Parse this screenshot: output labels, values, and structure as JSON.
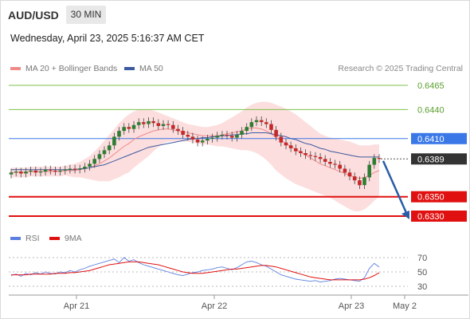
{
  "header": {
    "symbol": "AUD/USD",
    "timeframe": "30 MIN"
  },
  "timestamp": "Wednesday, April 23, 2025 5:16:37 AM CET",
  "legend": {
    "ma20": "MA 20 + Bollinger Bands",
    "ma50": "MA 50",
    "copyright": "Research © 2025 Trading Central",
    "rsi": "RSI",
    "ma9": "9MA"
  },
  "colors": {
    "ma20": "#f08a8a",
    "ma50": "#3d5aa0",
    "bull": "#2e7d32",
    "bear": "#c62828",
    "band": "#fbd3d3",
    "resistance": "#7dc24a",
    "pivot": "#3b78e7",
    "support": "#e01010",
    "current": "#333333",
    "arrow": "#2a5ca8",
    "rsi": "#5b7fe0"
  },
  "chart_data": [
    {
      "type": "candlestick",
      "instrument": "AUD/USD",
      "timeframe": "30 MIN",
      "x_labels": [
        "Apr 21",
        "Apr 22",
        "Apr 23",
        "May 2"
      ],
      "ylim": [
        0.6325,
        0.647
      ],
      "levels": [
        {
          "value": 0.6465,
          "label": "0.6465",
          "kind": "resistance"
        },
        {
          "value": 0.644,
          "label": "0.6440",
          "kind": "resistance"
        },
        {
          "value": 0.641,
          "label": "0.6410",
          "kind": "pivot"
        },
        {
          "value": 0.6389,
          "label": "0.6389",
          "kind": "current"
        },
        {
          "value": 0.635,
          "label": "0.6350",
          "kind": "support"
        },
        {
          "value": 0.633,
          "label": "0.6330",
          "kind": "support"
        }
      ],
      "close_series": [
        0.6375,
        0.6376,
        0.6374,
        0.6376,
        0.6377,
        0.6375,
        0.6376,
        0.6378,
        0.6377,
        0.6376,
        0.6377,
        0.6378,
        0.6379,
        0.6378,
        0.6379,
        0.6381,
        0.6384,
        0.6389,
        0.6394,
        0.6398,
        0.6403,
        0.6412,
        0.6418,
        0.6422,
        0.642,
        0.6424,
        0.6427,
        0.6425,
        0.6428,
        0.6426,
        0.6423,
        0.6425,
        0.6424,
        0.642,
        0.6418,
        0.6414,
        0.6412,
        0.6409,
        0.6406,
        0.6408,
        0.641,
        0.6411,
        0.6413,
        0.6414,
        0.6413,
        0.6411,
        0.6414,
        0.6418,
        0.6422,
        0.6427,
        0.6429,
        0.6427,
        0.6425,
        0.6419,
        0.6412,
        0.6406,
        0.6403,
        0.64,
        0.6397,
        0.6395,
        0.6393,
        0.6392,
        0.6391,
        0.6389,
        0.6386,
        0.6384,
        0.6383,
        0.6379,
        0.6375,
        0.6371,
        0.6367,
        0.6362,
        0.637,
        0.6383,
        0.639,
        0.6389
      ],
      "ma20_series": [
        0.6375,
        0.6375,
        0.6375,
        0.6375,
        0.6376,
        0.6376,
        0.6376,
        0.6376,
        0.6376,
        0.6376,
        0.6376,
        0.6377,
        0.6377,
        0.6377,
        0.6378,
        0.6379,
        0.638,
        0.6382,
        0.6384,
        0.6387,
        0.639,
        0.6394,
        0.6398,
        0.6402,
        0.6405,
        0.6409,
        0.6412,
        0.6414,
        0.6416,
        0.6418,
        0.6419,
        0.642,
        0.642,
        0.6419,
        0.6418,
        0.6417,
        0.6416,
        0.6415,
        0.6414,
        0.6413,
        0.6413,
        0.6413,
        0.6413,
        0.6414,
        0.6415,
        0.6416,
        0.6417,
        0.6418,
        0.642,
        0.6421,
        0.6421,
        0.642,
        0.6418,
        0.6415,
        0.6411,
        0.6408,
        0.6405,
        0.6402,
        0.6399,
        0.6396,
        0.6393,
        0.639,
        0.6387,
        0.6384,
        0.6382,
        0.638,
        0.6378,
        0.6376,
        0.6374,
        0.6372,
        0.637,
        0.6369,
        0.637,
        0.6372,
        0.6375,
        0.6377
      ],
      "ma50_series": [
        0.6378,
        0.6378,
        0.6378,
        0.6378,
        0.6378,
        0.6378,
        0.6378,
        0.6378,
        0.6378,
        0.6378,
        0.6378,
        0.6378,
        0.6378,
        0.6378,
        0.6379,
        0.6379,
        0.638,
        0.6381,
        0.6382,
        0.6383,
        0.6385,
        0.6387,
        0.6389,
        0.6391,
        0.6393,
        0.6395,
        0.6397,
        0.6399,
        0.6401,
        0.6402,
        0.6403,
        0.6404,
        0.6405,
        0.6406,
        0.6407,
        0.6408,
        0.6409,
        0.641,
        0.641,
        0.6411,
        0.6411,
        0.6412,
        0.6412,
        0.6413,
        0.6413,
        0.6414,
        0.6414,
        0.6415,
        0.6415,
        0.6416,
        0.6416,
        0.6416,
        0.6416,
        0.6415,
        0.6414,
        0.6413,
        0.6412,
        0.641,
        0.6409,
        0.6407,
        0.6405,
        0.6404,
        0.6402,
        0.64,
        0.6399,
        0.6397,
        0.6396,
        0.6395,
        0.6394,
        0.6393,
        0.6392,
        0.6391,
        0.6391,
        0.6391,
        0.6391,
        0.6391
      ],
      "band_width": [
        0.0005,
        0.0005,
        0.0005,
        0.0005,
        0.0005,
        0.0005,
        0.0005,
        0.0005,
        0.0005,
        0.0005,
        0.0005,
        0.0005,
        0.0006,
        0.0007,
        0.0008,
        0.001,
        0.0012,
        0.0015,
        0.0018,
        0.0021,
        0.0024,
        0.0026,
        0.0028,
        0.0029,
        0.003,
        0.0029,
        0.0028,
        0.0026,
        0.0024,
        0.0021,
        0.0018,
        0.0015,
        0.0013,
        0.0012,
        0.0011,
        0.001,
        0.0009,
        0.0009,
        0.0009,
        0.0009,
        0.0009,
        0.001,
        0.0011,
        0.0012,
        0.0014,
        0.0016,
        0.0018,
        0.002,
        0.0022,
        0.0024,
        0.0026,
        0.0028,
        0.003,
        0.0032,
        0.0034,
        0.0035,
        0.0036,
        0.0036,
        0.0036,
        0.0035,
        0.0034,
        0.0033,
        0.0032,
        0.0031,
        0.0031,
        0.0031,
        0.0032,
        0.0033,
        0.0034,
        0.0035,
        0.0035,
        0.0034,
        0.0033,
        0.0031,
        0.0029,
        0.0027
      ],
      "forecast_arrow": {
        "from": 0.6387,
        "to": 0.633
      }
    },
    {
      "type": "line",
      "name": "RSI",
      "yticks": [
        70,
        50,
        30
      ],
      "ylim": [
        20,
        80
      ],
      "rsi_series": [
        45,
        47,
        44,
        48,
        46,
        49,
        47,
        50,
        48,
        47,
        50,
        49,
        52,
        50,
        53,
        55,
        58,
        60,
        62,
        64,
        66,
        68,
        63,
        70,
        65,
        67,
        63,
        60,
        58,
        56,
        54,
        52,
        50,
        48,
        46,
        45,
        47,
        49,
        50,
        52,
        53,
        54,
        56,
        57,
        55,
        53,
        56,
        60,
        64,
        65,
        63,
        60,
        58,
        54,
        50,
        46,
        44,
        42,
        40,
        39,
        38,
        37,
        38,
        36,
        37,
        38,
        40,
        41,
        40,
        39,
        38,
        37,
        42,
        55,
        62,
        57
      ],
      "ma9_series": [
        46,
        46,
        46,
        46,
        47,
        47,
        47,
        47,
        47,
        48,
        48,
        48,
        49,
        49,
        50,
        51,
        52,
        54,
        56,
        58,
        60,
        61,
        62,
        63,
        64,
        64,
        64,
        63,
        62,
        61,
        60,
        58,
        56,
        54,
        52,
        50,
        49,
        48,
        48,
        48,
        49,
        50,
        51,
        52,
        53,
        54,
        54,
        55,
        56,
        57,
        58,
        59,
        59,
        58,
        57,
        55,
        53,
        51,
        49,
        47,
        45,
        43,
        42,
        41,
        40,
        39,
        39,
        39,
        39,
        39,
        39,
        39,
        40,
        42,
        45,
        49
      ]
    }
  ]
}
